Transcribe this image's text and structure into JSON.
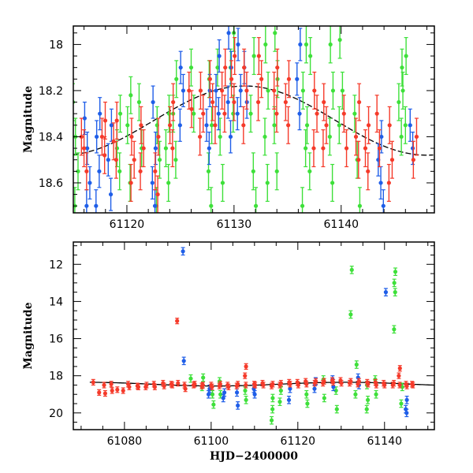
{
  "colors": {
    "blue": "#1f5ee8",
    "green": "#3ee03a",
    "red": "#f53a2a",
    "model": "#000000"
  },
  "chart_data": [
    {
      "type": "scatter",
      "title": "",
      "xlabel": "",
      "ylabel": "Magnitude",
      "xlim": [
        61115,
        61148.7
      ],
      "ylim": [
        18.73,
        17.92
      ],
      "xticks": [
        61120,
        61130,
        61140
      ],
      "xtick_labels": [
        "61120",
        "61130",
        "61140"
      ],
      "yticks": [
        18,
        18.2,
        18.4,
        18.6
      ],
      "ytick_labels": [
        "18",
        "18.2",
        "18.4",
        "18.6"
      ],
      "model_curve": {
        "type": "sinusoid",
        "mean": 18.33,
        "amplitude": 0.15,
        "t_min": 61131,
        "period": 34
      },
      "series": [
        {
          "name": "green",
          "color_key": "green",
          "err": 0.08,
          "nights": [
            [
              61115.2,
              [
                18.25,
                18.4,
                18.55,
                18.7
              ]
            ],
            [
              61119.2,
              [
                18.3,
                18.45,
                18.55
              ]
            ],
            [
              61120.3,
              [
                18.22,
                18.35,
                18.6
              ]
            ],
            [
              61121.2,
              [
                18.25,
                18.45
              ]
            ],
            [
              61123.0,
              [
                18.35,
                18.5,
                18.7
              ]
            ],
            [
              61123.7,
              [
                18.3,
                18.45,
                18.6
              ]
            ],
            [
              61124.5,
              [
                18.15,
                18.3,
                18.5
              ]
            ],
            [
              61126.0,
              [
                18.1,
                18.3
              ]
            ],
            [
              61127.8,
              [
                18.15,
                18.35,
                18.55,
                18.7
              ]
            ],
            [
              61128.7,
              [
                18.1,
                18.4,
                18.6
              ]
            ],
            [
              61129.8,
              [
                17.95,
                18.1,
                18.3
              ]
            ],
            [
              61131.8,
              [
                18.05,
                18.3,
                18.55,
                18.7
              ]
            ],
            [
              61133.0,
              [
                18.0,
                18.2,
                18.4,
                18.6
              ]
            ],
            [
              61134.0,
              [
                17.95,
                18.15,
                18.35,
                18.55
              ]
            ],
            [
              61136.5,
              [
                18.0,
                18.2,
                18.45,
                18.7
              ]
            ],
            [
              61137.0,
              [
                18.05,
                18.35,
                18.55
              ]
            ],
            [
              61139.0,
              [
                18.0,
                18.2,
                18.4,
                18.6
              ]
            ],
            [
              61140.0,
              [
                17.98,
                18.2,
                18.35
              ]
            ],
            [
              61141.5,
              [
                18.3,
                18.5,
                18.7
              ]
            ],
            [
              61145.5,
              [
                18.1,
                18.25,
                18.4
              ]
            ],
            [
              61146.0,
              [
                18.05,
                18.2,
                18.35
              ]
            ]
          ]
        },
        {
          "name": "blue",
          "color_key": "blue",
          "err": 0.07,
          "nights": [
            [
              61116.3,
              [
                18.32,
                18.45,
                18.6,
                18.7
              ]
            ],
            [
              61117.3,
              [
                18.3,
                18.4,
                18.55,
                18.7
              ]
            ],
            [
              61118.5,
              [
                18.35,
                18.5,
                18.65
              ]
            ],
            [
              61122.5,
              [
                18.25,
                18.45,
                18.6,
                18.7
              ]
            ],
            [
              61125.2,
              [
                18.1,
                18.2,
                18.35
              ]
            ],
            [
              61127.5,
              [
                18.2,
                18.35,
                18.45
              ]
            ],
            [
              61128.5,
              [
                18.05,
                18.2,
                18.3
              ]
            ],
            [
              61129.5,
              [
                17.95,
                18.1,
                18.25,
                18.4
              ]
            ],
            [
              61130.5,
              [
                18.0,
                18.2,
                18.3
              ]
            ],
            [
              61131.2,
              [
                18.1,
                18.25
              ]
            ],
            [
              61136.0,
              [
                18.0,
                18.15,
                18.3
              ]
            ],
            [
              61143.7,
              [
                18.4,
                18.5,
                18.6,
                18.7
              ]
            ],
            [
              61146.5,
              [
                18.35,
                18.45
              ]
            ]
          ]
        },
        {
          "name": "red",
          "color_key": "red",
          "err": 0.08,
          "nights": [
            [
              61116.0,
              [
                18.4,
                18.45,
                18.55
              ]
            ],
            [
              61117.8,
              [
                18.33,
                18.4,
                18.48
              ]
            ],
            [
              61119.0,
              [
                18.33,
                18.42,
                18.5
              ]
            ],
            [
              61120.5,
              [
                18.4,
                18.5,
                18.6
              ]
            ],
            [
              61121.5,
              [
                18.35,
                18.45,
                18.55
              ]
            ],
            [
              61122.7,
              [
                18.4,
                18.55,
                18.65
              ]
            ],
            [
              61124.2,
              [
                18.25,
                18.35,
                18.45
              ]
            ],
            [
              61125.8,
              [
                18.2,
                18.28
              ]
            ],
            [
              61127.0,
              [
                18.2,
                18.3,
                18.4
              ]
            ],
            [
              61128.0,
              [
                18.15,
                18.25,
                18.35
              ]
            ],
            [
              61129.0,
              [
                18.1,
                18.2,
                18.3
              ]
            ],
            [
              61130.0,
              [
                18.05,
                18.15,
                18.25
              ]
            ],
            [
              61131.0,
              [
                18.1,
                18.2,
                18.35
              ]
            ],
            [
              61132.5,
              [
                18.05,
                18.15,
                18.25
              ]
            ],
            [
              61133.8,
              [
                18.1,
                18.2,
                18.3
              ]
            ],
            [
              61135.0,
              [
                18.15,
                18.25,
                18.35
              ]
            ],
            [
              61137.5,
              [
                18.2,
                18.3,
                18.45
              ]
            ],
            [
              61138.5,
              [
                18.25,
                18.35,
                18.45
              ]
            ],
            [
              61140.5,
              [
                18.3,
                18.45
              ]
            ],
            [
              61141.5,
              [
                18.25,
                18.4,
                18.5
              ]
            ],
            [
              61142.5,
              [
                18.35,
                18.45,
                18.55
              ]
            ],
            [
              61143.4,
              [
                18.3,
                18.45
              ]
            ],
            [
              61144.7,
              [
                18.35,
                18.5,
                18.6
              ]
            ],
            [
              61146.8,
              [
                18.4,
                18.5
              ]
            ]
          ]
        }
      ]
    },
    {
      "type": "scatter",
      "title": "",
      "xlabel": "HJD−2400000",
      "ylabel": "Magnitude",
      "xlim": [
        61068.2,
        61151.5
      ],
      "ylim": [
        20.9,
        10.8
      ],
      "xticks": [
        61080,
        61100,
        61120,
        61140
      ],
      "xtick_labels": [
        "61080",
        "61100",
        "61120",
        "61140"
      ],
      "yticks": [
        12,
        14,
        16,
        18,
        20
      ],
      "ytick_labels": [
        "12",
        "14",
        "16",
        "18",
        "20"
      ],
      "model_curve": {
        "type": "sinusoid",
        "mean": 18.45,
        "amplitude": 0.1,
        "t_min": 61131,
        "period": 60,
        "x_start": 61072
      },
      "series": [
        {
          "name": "green",
          "color_key": "green",
          "err": 0.2,
          "nights": [
            [
              61095.5,
              [
                18.15
              ]
            ],
            [
              61098,
              [
                18.1,
                18.6
              ]
            ],
            [
              61100.5,
              [
                19.55,
                19.0
              ]
            ],
            [
              61102,
              [
                18.3,
                19.0
              ]
            ],
            [
              61108,
              [
                18.8,
                19.3
              ]
            ],
            [
              61114,
              [
                19.2,
                20.4,
                19.8
              ]
            ],
            [
              61116,
              [
                18.8,
                19.4
              ]
            ],
            [
              61122,
              [
                19.0,
                19.5
              ]
            ],
            [
              61126,
              [
                18.2,
                19.2
              ]
            ],
            [
              61129,
              [
                18.8,
                19.8
              ]
            ],
            [
              61132.3,
              [
                12.3,
                14.7
              ]
            ],
            [
              61133.5,
              [
                17.4,
                19.0
              ]
            ],
            [
              61136,
              [
                18.5,
                19.3,
                19.8
              ]
            ],
            [
              61138,
              [
                18.2,
                19.0
              ]
            ],
            [
              61142.3,
              [
                12.4,
                13.0,
                13.5,
                15.5
              ]
            ],
            [
              61144,
              [
                18.6,
                19.5
              ]
            ]
          ]
        },
        {
          "name": "blue",
          "color_key": "blue",
          "err": 0.2,
          "nights": [
            [
              61093.7,
              [
                11.3,
                17.2
              ]
            ],
            [
              61099.5,
              [
                18.7,
                19.0
              ]
            ],
            [
              61103,
              [
                18.9,
                19.2
              ]
            ],
            [
              61106,
              [
                18.9,
                19.6
              ]
            ],
            [
              61110,
              [
                18.7,
                19.0
              ]
            ],
            [
              61118,
              [
                18.7,
                19.3
              ]
            ],
            [
              61124,
              [
                18.3,
                18.7
              ]
            ],
            [
              61128,
              [
                18.2,
                18.6
              ]
            ],
            [
              61134,
              [
                18.1,
                18.5
              ]
            ],
            [
              61140.5,
              [
                13.5
              ]
            ],
            [
              61145,
              [
                19.3,
                19.8,
                20.0
              ]
            ]
          ]
        },
        {
          "name": "red",
          "color_key": "red",
          "err": 0.15,
          "nights": [
            [
              61073,
              [
                18.35
              ]
            ],
            [
              61074,
              [
                18.9
              ]
            ],
            [
              61075.5,
              [
                18.95,
                18.5
              ]
            ],
            [
              61077,
              [
                18.45,
                18.8
              ]
            ],
            [
              61078.5,
              [
                18.75
              ]
            ],
            [
              61079.5,
              [
                18.8
              ]
            ],
            [
              61081,
              [
                18.6,
                18.45
              ]
            ],
            [
              61083,
              [
                18.55,
                18.6
              ]
            ],
            [
              61085,
              [
                18.6,
                18.5
              ]
            ],
            [
              61087,
              [
                18.45,
                18.6
              ]
            ],
            [
              61089,
              [
                18.55,
                18.4
              ]
            ],
            [
              61091,
              [
                18.5,
                18.45
              ]
            ],
            [
              61092.2,
              [
                15.05,
                18.4
              ]
            ],
            [
              61094,
              [
                18.5,
                18.7
              ]
            ],
            [
              61096,
              [
                18.45,
                18.5
              ]
            ],
            [
              61098,
              [
                18.5,
                18.55
              ]
            ],
            [
              61100,
              [
                18.5,
                18.6
              ]
            ],
            [
              61102,
              [
                18.55,
                18.45
              ]
            ],
            [
              61104,
              [
                18.5,
                18.6
              ]
            ],
            [
              61106,
              [
                18.45,
                18.55
              ]
            ],
            [
              61108,
              [
                17.5,
                18.0,
                18.5
              ]
            ],
            [
              61110,
              [
                18.45,
                18.5
              ]
            ],
            [
              61112,
              [
                18.4,
                18.5
              ]
            ],
            [
              61114,
              [
                18.45,
                18.55
              ]
            ],
            [
              61116,
              [
                18.4,
                18.5
              ]
            ],
            [
              61118,
              [
                18.35,
                18.45
              ]
            ],
            [
              61120,
              [
                18.35,
                18.5
              ]
            ],
            [
              61122,
              [
                18.3,
                18.45
              ]
            ],
            [
              61124,
              [
                18.3,
                18.4
              ]
            ],
            [
              61126,
              [
                18.3,
                18.4
              ]
            ],
            [
              61128,
              [
                18.25,
                18.35
              ]
            ],
            [
              61130,
              [
                18.25,
                18.4
              ]
            ],
            [
              61132,
              [
                18.3,
                18.4
              ]
            ],
            [
              61134,
              [
                18.3,
                18.45
              ]
            ],
            [
              61136,
              [
                18.35,
                18.45
              ]
            ],
            [
              61138,
              [
                18.35,
                18.5
              ]
            ],
            [
              61140,
              [
                18.4,
                18.5
              ]
            ],
            [
              61142,
              [
                18.4,
                18.5
              ]
            ],
            [
              61143.5,
              [
                17.6,
                18.0,
                18.5
              ]
            ],
            [
              61145,
              [
                18.45,
                18.55
              ]
            ],
            [
              61146.5,
              [
                18.45,
                18.5
              ]
            ]
          ]
        }
      ]
    }
  ]
}
